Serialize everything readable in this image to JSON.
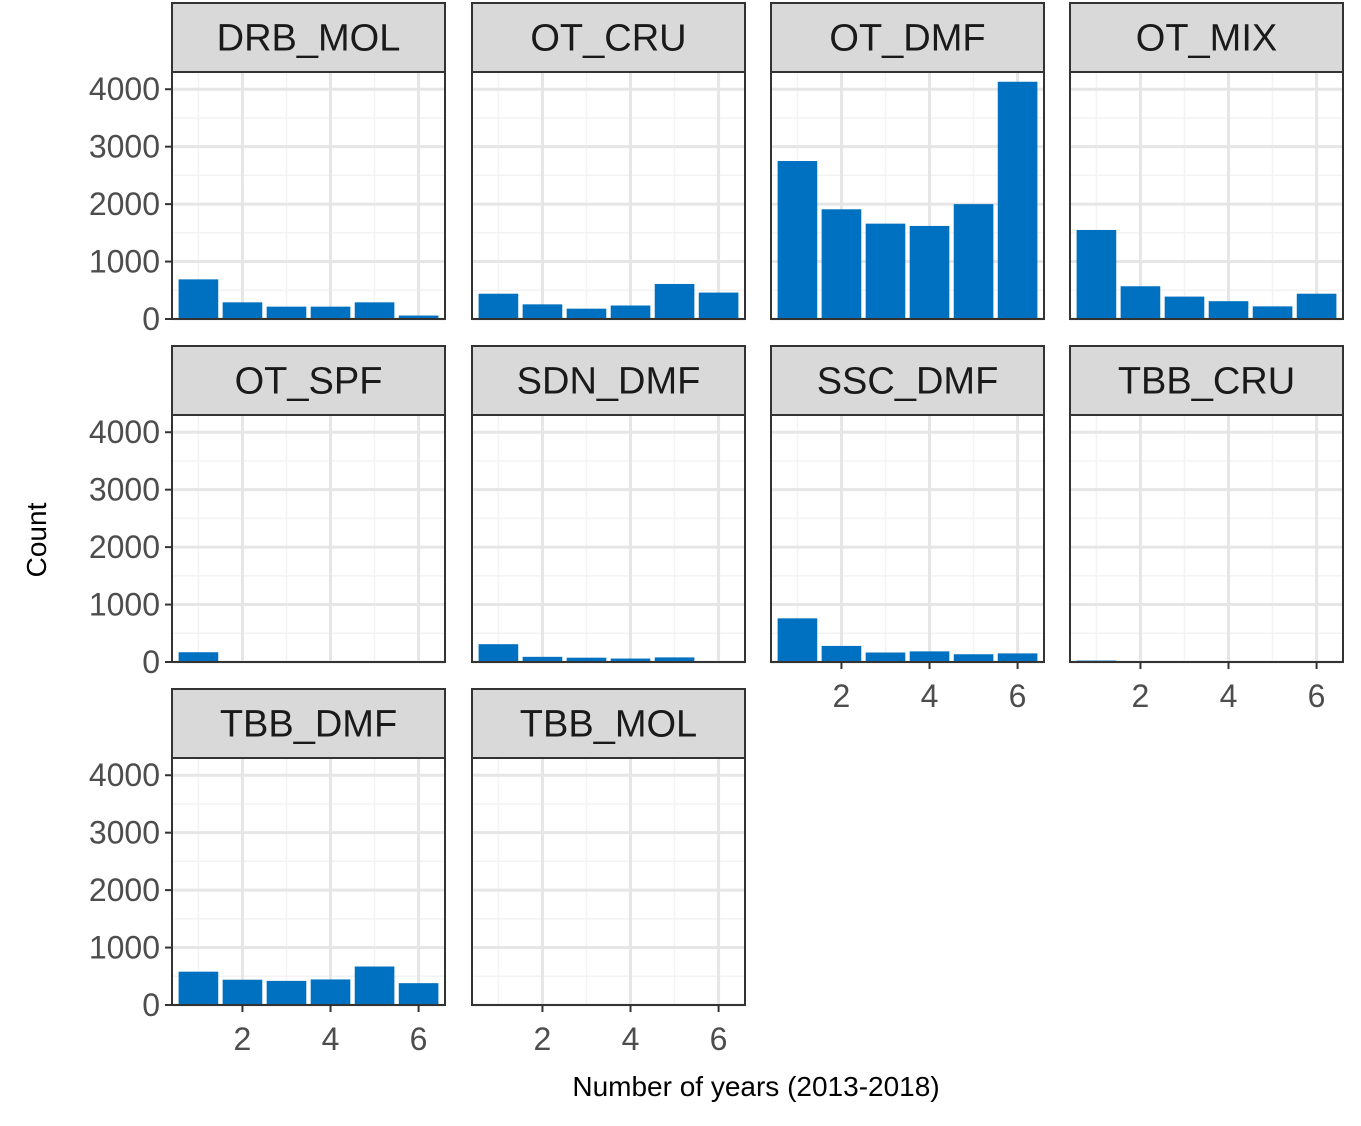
{
  "chart_data": {
    "type": "bar",
    "xlabel": "Number of years (2013-2018)",
    "ylabel": "Count",
    "x": [
      1,
      2,
      3,
      4,
      5,
      6
    ],
    "x_ticks": [
      2,
      4,
      6
    ],
    "y_ticks": [
      0,
      1000,
      2000,
      3000,
      4000
    ],
    "ylim": [
      0,
      4300
    ],
    "bar_color": "#0070C0",
    "grid": true,
    "facets": [
      {
        "name": "DRB_MOL",
        "values": [
          690,
          290,
          215,
          215,
          290,
          60
        ]
      },
      {
        "name": "OT_CRU",
        "values": [
          440,
          255,
          180,
          235,
          610,
          460
        ]
      },
      {
        "name": "OT_DMF",
        "values": [
          2750,
          1910,
          1660,
          1620,
          2000,
          4130
        ]
      },
      {
        "name": "OT_MIX",
        "values": [
          1550,
          570,
          390,
          310,
          220,
          440
        ]
      },
      {
        "name": "OT_SPF",
        "values": [
          170,
          0,
          0,
          0,
          0,
          0
        ]
      },
      {
        "name": "SDN_DMF",
        "values": [
          310,
          90,
          75,
          60,
          80,
          0
        ]
      },
      {
        "name": "SSC_DMF",
        "values": [
          760,
          280,
          165,
          185,
          135,
          150
        ]
      },
      {
        "name": "TBB_CRU",
        "values": [
          25,
          0,
          0,
          0,
          0,
          0
        ]
      },
      {
        "name": "TBB_DMF",
        "values": [
          580,
          440,
          420,
          445,
          670,
          380
        ]
      },
      {
        "name": "TBB_MOL",
        "values": [
          0,
          0,
          0,
          0,
          0,
          0
        ]
      }
    ]
  }
}
